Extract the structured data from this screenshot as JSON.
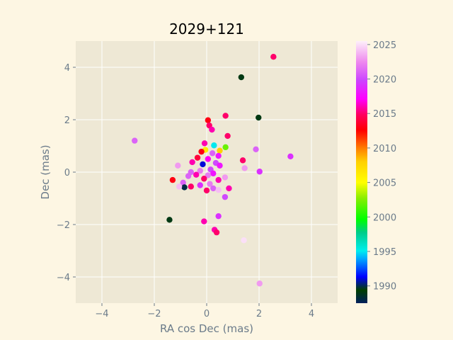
{
  "chart_data": {
    "type": "scatter",
    "title": "2029+121",
    "xlabel": "RA cos Dec (mas)",
    "ylabel": "Dec (mas)",
    "xlim": [
      -5,
      5
    ],
    "ylim": [
      -5,
      5
    ],
    "xticks": [
      -4,
      -2,
      0,
      2,
      4
    ],
    "yticks": [
      -4,
      -2,
      0,
      2,
      4
    ],
    "grid": true,
    "colorbar": {
      "label": "",
      "range": [
        1987.5,
        2025.5
      ],
      "ticks": [
        1990,
        1995,
        2000,
        2005,
        2010,
        2015,
        2020,
        2025
      ],
      "colormap": "gist_ncar"
    },
    "points": [
      {
        "x": 2.55,
        "y": 4.4,
        "year": 2015
      },
      {
        "x": 1.32,
        "y": 3.62,
        "year": 1989
      },
      {
        "x": 1.98,
        "y": 2.08,
        "year": 1989
      },
      {
        "x": 0.72,
        "y": 2.15,
        "year": 2015
      },
      {
        "x": 0.05,
        "y": 1.98,
        "year": 2013
      },
      {
        "x": 0.1,
        "y": 1.78,
        "year": 2015
      },
      {
        "x": 0.2,
        "y": 1.62,
        "year": 2016
      },
      {
        "x": 0.8,
        "y": 1.38,
        "year": 2015
      },
      {
        "x": -2.75,
        "y": 1.2,
        "year": 2021
      },
      {
        "x": -0.08,
        "y": 1.1,
        "year": 2016
      },
      {
        "x": 0.28,
        "y": 1.02,
        "year": 1995
      },
      {
        "x": 0.72,
        "y": 0.95,
        "year": 2002
      },
      {
        "x": 1.88,
        "y": 0.87,
        "year": 2021
      },
      {
        "x": -0.05,
        "y": 0.85,
        "year": 2006
      },
      {
        "x": 0.5,
        "y": 0.82,
        "year": 2008
      },
      {
        "x": -0.2,
        "y": 0.78,
        "year": 2013
      },
      {
        "x": 0.22,
        "y": 0.72,
        "year": 2021
      },
      {
        "x": 3.2,
        "y": 0.6,
        "year": 2019
      },
      {
        "x": 0.45,
        "y": 0.62,
        "year": 2018
      },
      {
        "x": -0.35,
        "y": 0.55,
        "year": 2014
      },
      {
        "x": 0.05,
        "y": 0.5,
        "year": 2017
      },
      {
        "x": 1.38,
        "y": 0.45,
        "year": 2015
      },
      {
        "x": -0.55,
        "y": 0.38,
        "year": 2016
      },
      {
        "x": 0.35,
        "y": 0.35,
        "year": 2020
      },
      {
        "x": -0.15,
        "y": 0.3,
        "year": 1991
      },
      {
        "x": 0.5,
        "y": 0.25,
        "year": 2018
      },
      {
        "x": -1.1,
        "y": 0.25,
        "year": 2023
      },
      {
        "x": 1.45,
        "y": 0.15,
        "year": 2023
      },
      {
        "x": 0.15,
        "y": 0.1,
        "year": 2020
      },
      {
        "x": -0.25,
        "y": 0.05,
        "year": 2022
      },
      {
        "x": 2.02,
        "y": 0.02,
        "year": 2019
      },
      {
        "x": -0.6,
        "y": 0.0,
        "year": 2021
      },
      {
        "x": 0.25,
        "y": -0.05,
        "year": 2018
      },
      {
        "x": -0.4,
        "y": -0.1,
        "year": 2016
      },
      {
        "x": 0.05,
        "y": -0.12,
        "year": 2022
      },
      {
        "x": -0.7,
        "y": -0.15,
        "year": 2021
      },
      {
        "x": 0.7,
        "y": -0.2,
        "year": 2023
      },
      {
        "x": -0.1,
        "y": -0.25,
        "year": 2015
      },
      {
        "x": 0.45,
        "y": -0.3,
        "year": 2016
      },
      {
        "x": -0.9,
        "y": -0.4,
        "year": 2021
      },
      {
        "x": -1.3,
        "y": -0.3,
        "year": 2013
      },
      {
        "x": 0.12,
        "y": -0.45,
        "year": 2022
      },
      {
        "x": -0.25,
        "y": -0.5,
        "year": 2019
      },
      {
        "x": -0.6,
        "y": -0.55,
        "year": 2015
      },
      {
        "x": -0.85,
        "y": -0.58,
        "year": 1988
      },
      {
        "x": -1.05,
        "y": -0.55,
        "year": 2024
      },
      {
        "x": 0.25,
        "y": -0.62,
        "year": 2021
      },
      {
        "x": 0.85,
        "y": -0.62,
        "year": 2016
      },
      {
        "x": 0.0,
        "y": -0.7,
        "year": 2015
      },
      {
        "x": 0.45,
        "y": -0.68,
        "year": 2024
      },
      {
        "x": 0.7,
        "y": -0.95,
        "year": 2020
      },
      {
        "x": 0.45,
        "y": -1.68,
        "year": 2019
      },
      {
        "x": -1.42,
        "y": -1.82,
        "year": 1989
      },
      {
        "x": -0.1,
        "y": -1.88,
        "year": 2016
      },
      {
        "x": 0.3,
        "y": -2.2,
        "year": 2016
      },
      {
        "x": 0.38,
        "y": -2.3,
        "year": 2015
      },
      {
        "x": 1.42,
        "y": -2.6,
        "year": 2025
      },
      {
        "x": 2.02,
        "y": -4.25,
        "year": 2023
      }
    ]
  }
}
